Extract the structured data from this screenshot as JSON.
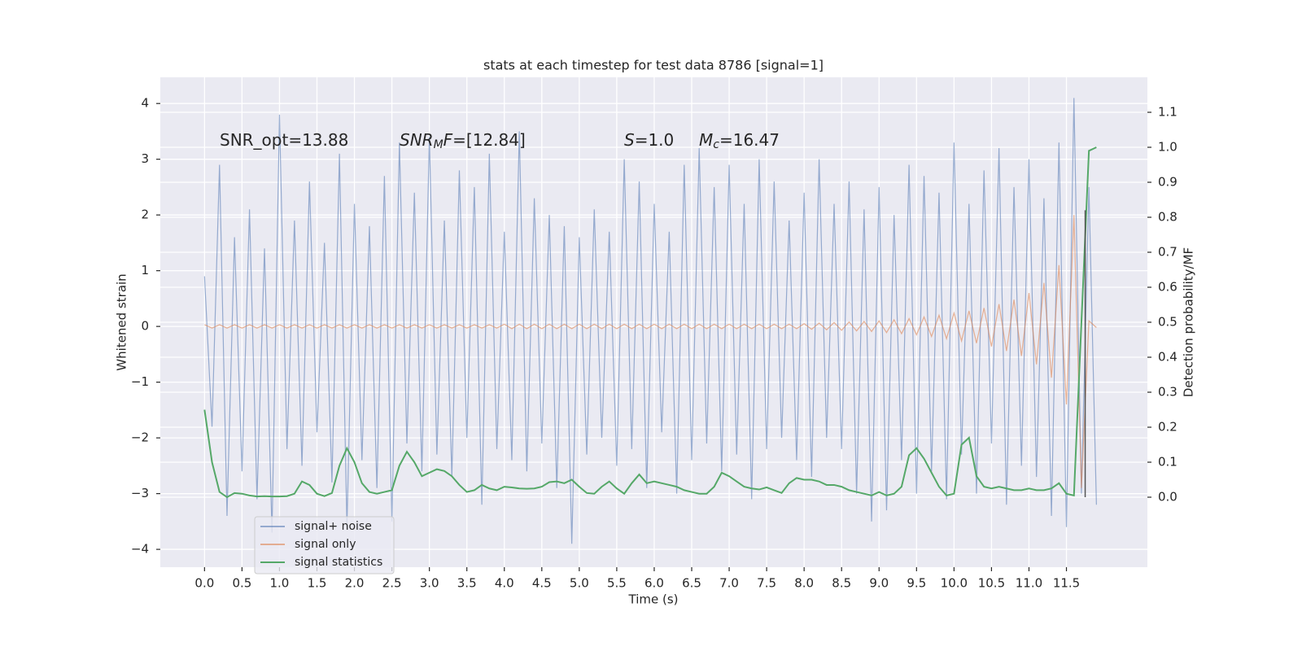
{
  "chart_data": {
    "type": "line",
    "title": "stats at each timestep for test data 8786 [signal=1]",
    "xlabel": "Time (s)",
    "ylabel": "Whitened strain",
    "y2label": "Detection probability/MF",
    "xlim": [
      -0.59,
      12.58
    ],
    "ylim": [
      -4.32,
      4.47
    ],
    "y2lim": [
      -0.2,
      1.2
    ],
    "xticks": [
      {
        "value": 0,
        "label": "0.0"
      },
      0.5,
      {
        "value": 1,
        "label": "1.0"
      },
      1.5,
      {
        "value": 2,
        "label": "2.0"
      },
      2.5,
      {
        "value": 3,
        "label": "3.0"
      },
      3.5,
      {
        "value": 4,
        "label": "4.0"
      },
      4.5,
      {
        "value": 5,
        "label": "5.0"
      },
      5.5,
      {
        "value": 6,
        "label": "6.0"
      },
      6.5,
      {
        "value": 7,
        "label": "7.0"
      },
      7.5,
      {
        "value": 8,
        "label": "8.0"
      },
      8.5,
      {
        "value": 9,
        "label": "9.0"
      },
      9.5,
      {
        "value": 10,
        "label": "10.0"
      },
      10.5,
      {
        "value": 11,
        "label": "11.0"
      },
      11.5
    ],
    "yticks": [
      {
        "value": -4,
        "label": "−4"
      },
      {
        "value": -3,
        "label": "−3"
      },
      {
        "value": -2,
        "label": "−2"
      },
      {
        "value": -1,
        "label": "−1"
      },
      0,
      1,
      2,
      3,
      4
    ],
    "y2ticks": [
      {
        "value": 0,
        "label": "0.0"
      },
      0.1,
      0.2,
      0.3,
      0.4,
      0.5,
      0.6,
      0.7,
      0.8,
      0.9,
      {
        "value": 1,
        "label": "1.0"
      },
      1.1
    ],
    "grid": true,
    "legend": "lower left",
    "x": [
      0.0,
      0.1,
      0.2,
      0.3,
      0.4,
      0.5,
      0.6,
      0.7,
      0.8,
      0.9,
      1.0,
      1.1,
      1.2,
      1.3,
      1.4,
      1.5,
      1.6,
      1.7,
      1.8,
      1.9,
      2.0,
      2.1,
      2.2,
      2.3,
      2.4,
      2.5,
      2.6,
      2.7,
      2.8,
      2.9,
      3.0,
      3.1,
      3.2,
      3.3,
      3.4,
      3.5,
      3.6,
      3.7,
      3.8,
      3.9,
      4.0,
      4.1,
      4.2,
      4.3,
      4.4,
      4.5,
      4.6,
      4.7,
      4.8,
      4.9,
      5.0,
      5.1,
      5.2,
      5.3,
      5.4,
      5.5,
      5.6,
      5.7,
      5.8,
      5.9,
      6.0,
      6.1,
      6.2,
      6.3,
      6.4,
      6.5,
      6.6,
      6.7,
      6.8,
      6.9,
      7.0,
      7.1,
      7.2,
      7.3,
      7.4,
      7.5,
      7.6,
      7.7,
      7.8,
      7.9,
      8.0,
      8.1,
      8.2,
      8.3,
      8.4,
      8.5,
      8.6,
      8.7,
      8.8,
      8.9,
      9.0,
      9.1,
      9.2,
      9.3,
      9.4,
      9.5,
      9.6,
      9.7,
      9.8,
      9.9,
      10.0,
      10.1,
      10.2,
      10.3,
      10.4,
      10.5,
      10.6,
      10.7,
      10.8,
      10.9,
      11.0,
      11.1,
      11.2,
      11.3,
      11.4,
      11.5,
      11.6,
      11.7,
      11.8,
      11.9
    ],
    "series": [
      {
        "name": "signal+ noise",
        "color": "#4c72b0",
        "values": [
          0.9,
          -1.8,
          2.9,
          -3.4,
          1.6,
          -2.6,
          2.1,
          -3.1,
          1.4,
          -3.7,
          3.8,
          -2.2,
          1.9,
          -2.5,
          2.6,
          -1.9,
          1.5,
          -2.8,
          3.1,
          -3.6,
          2.2,
          -2.4,
          1.8,
          -2.9,
          2.7,
          -3.5,
          3.3,
          -2.1,
          2.4,
          -2.6,
          3.4,
          -2.3,
          1.9,
          -2.7,
          2.8,
          -2.0,
          2.5,
          -3.2,
          3.1,
          -2.2,
          1.7,
          -2.4,
          3.5,
          -2.6,
          2.3,
          -2.1,
          2.0,
          -2.9,
          1.8,
          -3.9,
          1.6,
          -2.3,
          2.1,
          -2.0,
          1.7,
          -2.5,
          3.0,
          -2.2,
          2.6,
          -2.9,
          2.2,
          -1.9,
          1.7,
          -3.0,
          2.9,
          -2.4,
          3.2,
          -2.1,
          2.5,
          -2.6,
          2.9,
          -2.3,
          2.2,
          -3.1,
          3.0,
          -2.2,
          2.6,
          -2.0,
          1.9,
          -2.4,
          2.4,
          -2.7,
          3.0,
          -2.0,
          2.2,
          -2.2,
          2.6,
          -3.0,
          2.1,
          -3.5,
          2.5,
          -3.3,
          2.0,
          -2.4,
          2.9,
          -3.0,
          2.7,
          -2.6,
          2.4,
          -3.1,
          3.3,
          -2.3,
          2.2,
          -3.0,
          2.8,
          -2.1,
          3.2,
          -3.2,
          2.5,
          -2.5,
          3.0,
          -2.7,
          2.3,
          -3.4,
          3.3,
          -3.6,
          4.1,
          -3.0,
          2.5,
          -3.2
        ]
      },
      {
        "name": "signal only",
        "color": "#dd8452",
        "values": [
          0.03,
          -0.03,
          0.03,
          -0.03,
          0.03,
          -0.03,
          0.03,
          -0.03,
          0.03,
          -0.03,
          0.03,
          -0.03,
          0.03,
          -0.03,
          0.03,
          -0.03,
          0.03,
          -0.03,
          0.03,
          -0.03,
          0.03,
          -0.03,
          0.03,
          -0.03,
          0.03,
          -0.03,
          0.03,
          -0.03,
          0.03,
          -0.03,
          0.03,
          -0.03,
          0.03,
          -0.03,
          0.03,
          -0.03,
          0.03,
          -0.03,
          0.03,
          -0.03,
          0.04,
          -0.04,
          0.04,
          -0.04,
          0.04,
          -0.04,
          0.04,
          -0.04,
          0.04,
          -0.04,
          0.04,
          -0.04,
          0.04,
          -0.04,
          0.04,
          -0.04,
          0.04,
          -0.04,
          0.04,
          -0.04,
          0.04,
          -0.04,
          0.04,
          -0.04,
          0.04,
          -0.04,
          0.04,
          -0.04,
          0.04,
          -0.04,
          0.04,
          -0.04,
          0.04,
          -0.04,
          0.04,
          -0.04,
          0.04,
          -0.04,
          0.04,
          -0.04,
          0.05,
          -0.05,
          0.06,
          -0.06,
          0.07,
          -0.07,
          0.08,
          -0.08,
          0.09,
          -0.09,
          0.1,
          -0.11,
          0.12,
          -0.13,
          0.14,
          -0.15,
          0.17,
          -0.18,
          0.2,
          -0.22,
          0.24,
          -0.26,
          0.28,
          -0.3,
          0.33,
          -0.36,
          0.4,
          -0.44,
          0.48,
          -0.53,
          0.6,
          -0.68,
          0.78,
          -0.92,
          1.1,
          -1.4,
          2.0,
          -2.9,
          0.1,
          -0.02
        ]
      },
      {
        "name": "signal statistics",
        "color": "#55a868",
        "axis": "y2",
        "values": [
          0.25,
          0.1,
          0.015,
          0.0,
          0.012,
          0.01,
          0.005,
          0.002,
          0.003,
          0.002,
          0.002,
          0.003,
          0.01,
          0.045,
          0.035,
          0.01,
          0.003,
          0.012,
          0.09,
          0.14,
          0.1,
          0.04,
          0.015,
          0.01,
          0.015,
          0.02,
          0.09,
          0.13,
          0.1,
          0.06,
          0.07,
          0.08,
          0.075,
          0.06,
          0.035,
          0.015,
          0.02,
          0.035,
          0.025,
          0.02,
          0.03,
          0.028,
          0.025,
          0.024,
          0.025,
          0.03,
          0.043,
          0.045,
          0.04,
          0.05,
          0.03,
          0.012,
          0.01,
          0.03,
          0.045,
          0.025,
          0.01,
          0.04,
          0.065,
          0.04,
          0.045,
          0.04,
          0.035,
          0.03,
          0.02,
          0.015,
          0.01,
          0.01,
          0.03,
          0.07,
          0.06,
          0.045,
          0.03,
          0.025,
          0.022,
          0.028,
          0.02,
          0.012,
          0.04,
          0.055,
          0.05,
          0.05,
          0.045,
          0.035,
          0.035,
          0.03,
          0.02,
          0.015,
          0.01,
          0.005,
          0.015,
          0.005,
          0.01,
          0.03,
          0.12,
          0.14,
          0.11,
          0.07,
          0.03,
          0.005,
          0.01,
          0.15,
          0.17,
          0.06,
          0.03,
          0.025,
          0.03,
          0.025,
          0.02,
          0.02,
          0.025,
          0.02,
          0.02,
          0.025,
          0.04,
          0.01,
          0.005,
          0.5,
          0.99,
          1.0
        ]
      }
    ],
    "vline": {
      "x": 11.75,
      "y2": [
        0,
        0.82
      ],
      "color": "#555555"
    },
    "annotations": [
      {
        "parts": [
          {
            "text": "SNR_opt=13.88"
          }
        ]
      },
      {
        "parts": [
          {
            "text": "SNR",
            "italic": true
          },
          {
            "text": "M",
            "italic": true,
            "sub": true
          },
          {
            "text": "F",
            "italic": true
          },
          {
            "text": "=[12.84]"
          }
        ]
      },
      {
        "parts": [
          {
            "text": "S",
            "italic": true
          },
          {
            "text": "=1.0"
          }
        ]
      },
      {
        "parts": [
          {
            "text": "M",
            "italic": true
          },
          {
            "text": "c",
            "italic": true,
            "sub": true
          },
          {
            "text": "=16.47"
          }
        ]
      }
    ]
  }
}
